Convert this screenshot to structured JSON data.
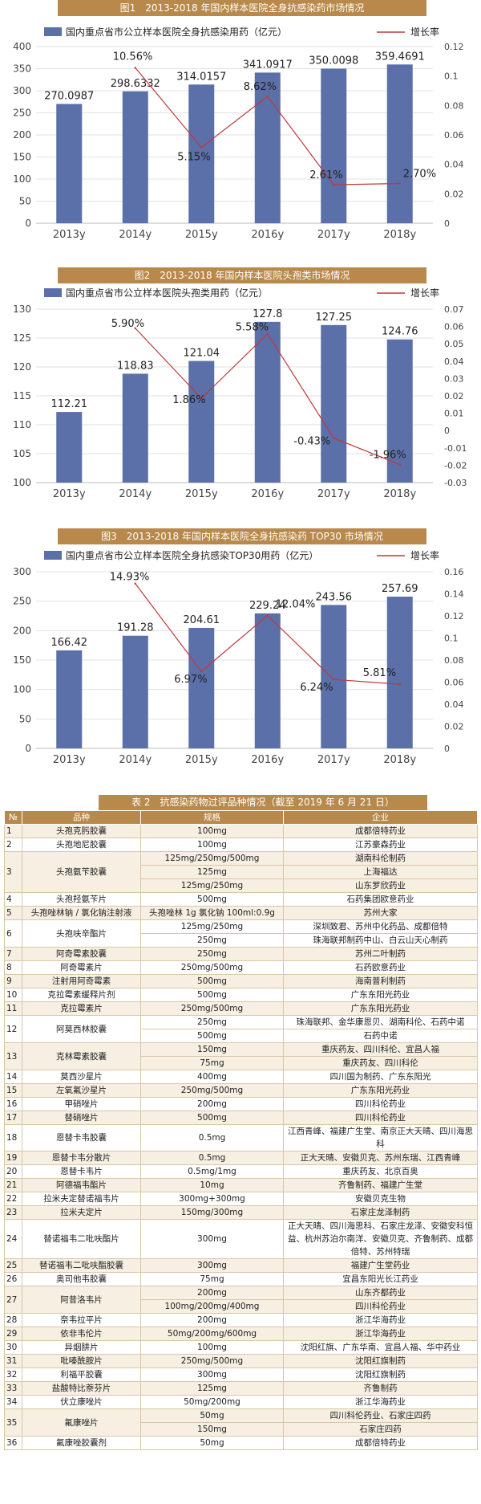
{
  "chart_data": [
    {
      "type": "bar",
      "title": "图1　2013-2018 年国内样本医院全身抗感染药市场情况",
      "bar_series": {
        "name": "国内重点省市公立样本医院全身抗感染用药（亿元）",
        "color": "#5b6fa8",
        "values": [
          270.0987,
          298.6332,
          314.0157,
          341.0917,
          350.0098,
          359.4691
        ]
      },
      "line_series": {
        "name": "增长率",
        "color": "#c0383c",
        "values": [
          null,
          0.1056,
          0.0515,
          0.0862,
          0.0261,
          0.027
        ]
      },
      "categories": [
        "2013y",
        "2014y",
        "2015y",
        "2016y",
        "2017y",
        "2018y"
      ],
      "bar_labels": [
        "270.0987",
        "298.6332",
        "314.0157",
        "341.0917",
        "350.0098",
        "359.4691"
      ],
      "line_labels": [
        "",
        "10.56%",
        "5.15%",
        "8.62%",
        "2.61%",
        "2.70%"
      ],
      "ylim_left": [
        0,
        400
      ],
      "yticks_left": [
        "0",
        "50",
        "100",
        "150",
        "200",
        "250",
        "300",
        "350",
        "400"
      ],
      "ylim_right": [
        0,
        0.12
      ],
      "yticks_right": [
        "0",
        "0.02",
        "0.04",
        "0.06",
        "0.08",
        "0.1",
        "0.12"
      ]
    },
    {
      "type": "bar",
      "title": "图2　2013-2018 年国内样本医院头孢类市场情况",
      "bar_series": {
        "name": "国内重点省市公立样本医院头孢类用药（亿元）",
        "color": "#5b6fa8",
        "values": [
          112.21,
          118.83,
          121.04,
          127.8,
          127.25,
          124.76
        ]
      },
      "line_series": {
        "name": "增长率",
        "color": "#c0383c",
        "values": [
          null,
          0.059,
          0.0186,
          0.0558,
          -0.0043,
          -0.0196
        ]
      },
      "categories": [
        "2013y",
        "2014y",
        "2015y",
        "2016y",
        "2017y",
        "2018y"
      ],
      "bar_labels": [
        "112.21",
        "118.83",
        "121.04",
        "127.8",
        "127.25",
        "124.76"
      ],
      "line_labels": [
        "",
        "5.90%",
        "1.86%",
        "5.58%",
        "-0.43%",
        "-1.96%"
      ],
      "ylim_left": [
        100,
        130
      ],
      "yticks_left": [
        "100",
        "105",
        "110",
        "115",
        "120",
        "125",
        "130"
      ],
      "ylim_right": [
        -0.03,
        0.07
      ],
      "yticks_right": [
        "-0.03",
        "-0.02",
        "-0.01",
        "0",
        "0.01",
        "0.02",
        "0.03",
        "0.04",
        "0.05",
        "0.06",
        "0.07"
      ]
    },
    {
      "type": "bar",
      "title": "图3　2013-2018 年国内样本医院全身抗感染药 TOP30 市场情况",
      "bar_series": {
        "name": "国内重点省市公立样本医院全身抗感染TOP30用药（亿元）",
        "color": "#5b6fa8",
        "values": [
          166.42,
          191.28,
          204.61,
          229.24,
          243.56,
          257.69
        ]
      },
      "line_series": {
        "name": "增长率",
        "color": "#c0383c",
        "values": [
          null,
          0.1493,
          0.0697,
          0.1204,
          0.0624,
          0.0581
        ]
      },
      "categories": [
        "2013y",
        "2014y",
        "2015y",
        "2016y",
        "2017y",
        "2018y"
      ],
      "bar_labels": [
        "166.42",
        "191.28",
        "204.61",
        "229.24",
        "243.56",
        "257.69"
      ],
      "line_labels": [
        "",
        "14.93%",
        "6.97%",
        "12.04%",
        "6.24%",
        "5.81%"
      ],
      "ylim_left": [
        0,
        300
      ],
      "yticks_left": [
        "0",
        "50",
        "100",
        "150",
        "200",
        "250",
        "300"
      ],
      "ylim_right": [
        0,
        0.16
      ],
      "yticks_right": [
        "0",
        "0.02",
        "0.04",
        "0.06",
        "0.08",
        "0.1",
        "0.12",
        "0.14",
        "0.16"
      ]
    }
  ],
  "table": {
    "title": "表 2　抗感染药物过评品种情况（截至 2019 年 6 月 21 日）",
    "headers": [
      "№",
      "品种",
      "规格",
      "企业"
    ],
    "rows": [
      [
        "1",
        "头孢克肟胶囊",
        "100mg",
        "成都倍特药业"
      ],
      [
        "2",
        "头孢地尼胶囊",
        "100mg",
        "江苏豪森药业"
      ],
      [
        "3",
        "头孢氨苄胶囊",
        "125mg/250mg/500mg",
        "湖南科伦制药"
      ],
      [
        "",
        "",
        "125mg",
        "上海福达"
      ],
      [
        "",
        "",
        "125mg/250mg",
        "山东罗欣药业"
      ],
      [
        "4",
        "头孢羟氨苄片",
        "500mg",
        "石药集团欧意药业"
      ],
      [
        "5",
        "头孢唑林钠 / 氯化钠注射液",
        "头孢唑林 1g 氯化钠 100ml:0.9g",
        "苏州大家"
      ],
      [
        "6",
        "头孢呋辛酯片",
        "125mg/250mg",
        "深圳致君、苏州中化药品、成都倍特"
      ],
      [
        "",
        "",
        "250mg",
        "珠海联邦制药中山、白云山天心制药"
      ],
      [
        "7",
        "阿奇霉素胶囊",
        "250mg",
        "苏州二叶制药"
      ],
      [
        "8",
        "阿奇霉素片",
        "250mg/500mg",
        "石药欧意药业"
      ],
      [
        "9",
        "注射用阿奇霉素",
        "500mg",
        "海南普利制药"
      ],
      [
        "10",
        "克拉霉素缓释片剂",
        "500mg",
        "广东东阳光药业"
      ],
      [
        "11",
        "克拉霉素片",
        "250mg/500mg",
        "广东东阳光药业"
      ],
      [
        "12",
        "阿莫西林胶囊",
        "250mg",
        "珠海联邦、金华康恩贝、湖南科伦、石药中诺"
      ],
      [
        "",
        "",
        "500mg",
        "石药中诺"
      ],
      [
        "13",
        "克林霉素胶囊",
        "150mg",
        "重庆药友、四川科伦、宜昌人福"
      ],
      [
        "",
        "",
        "75mg",
        "重庆药友、四川科伦"
      ],
      [
        "14",
        "莫西沙星片",
        "400mg",
        "四川国为制药、广东东阳光"
      ],
      [
        "15",
        "左氧氟沙星片",
        "250mg/500mg",
        "广东东阳光药业"
      ],
      [
        "16",
        "甲硝唑片",
        "200mg",
        "四川科伦药业"
      ],
      [
        "17",
        "替硝唑片",
        "500mg",
        "四川科伦药业"
      ],
      [
        "18",
        "恩替卡韦胶囊",
        "0.5mg",
        "江西青峰、福建广生堂、南京正大天晴、四川海思科"
      ],
      [
        "19",
        "恩替卡韦分散片",
        "0.5mg",
        "正大天晴、安徽贝克、苏州东瑞、江西青峰"
      ],
      [
        "20",
        "恩替卡韦片",
        "0.5mg/1mg",
        "重庆药友、北京百奥"
      ],
      [
        "21",
        "阿德福韦酯片",
        "10mg",
        "齐鲁制药、福建广生堂"
      ],
      [
        "22",
        "拉米夫定替诺福韦片",
        "300mg+300mg",
        "安徽贝克生物"
      ],
      [
        "23",
        "拉米夫定片",
        "150mg/300mg",
        "石家庄龙泽制药"
      ],
      [
        "24",
        "替诺福韦二吡呋酯片",
        "300mg",
        "正大天晴、四川海思科、石家庄龙泽、安徽安科恒益、杭州苏泊尔南洋、安徽贝克、齐鲁制药、成都倍特、苏州特瑞"
      ],
      [
        "25",
        "替诺福韦二吡呋酯胶囊",
        "300mg",
        "福建广生堂药业"
      ],
      [
        "26",
        "奥司他韦胶囊",
        "75mg",
        "宜昌东阳光长江药业"
      ],
      [
        "27",
        "阿昔洛韦片",
        "200mg",
        "山东齐都药业"
      ],
      [
        "",
        "",
        "100mg/200mg/400mg",
        "四川科伦药业"
      ],
      [
        "28",
        "奈韦拉平片",
        "200mg",
        "浙江华海药业"
      ],
      [
        "29",
        "依非韦伦片",
        "50mg/200mg/600mg",
        "浙江华海药业"
      ],
      [
        "30",
        "异烟肼片",
        "100mg",
        "沈阳红旗、广东华南、宜昌人福、华中药业"
      ],
      [
        "31",
        "吡嗪酰胺片",
        "250mg/500mg",
        "沈阳红旗制药"
      ],
      [
        "32",
        "利福平胶囊",
        "300mg",
        "沈阳红旗制药"
      ],
      [
        "33",
        "盐酸特比萘芬片",
        "125mg",
        "齐鲁制药"
      ],
      [
        "34",
        "伏立康唑片",
        "50mg/200mg",
        "浙江华海药业"
      ],
      [
        "35",
        "氟康唑片",
        "50mg",
        "四川科伦药业、石家庄四药"
      ],
      [
        "",
        "",
        "150mg",
        "石家庄四药"
      ],
      [
        "36",
        "氟康唑胶囊剂",
        "50mg",
        "成都倍特药业"
      ]
    ]
  }
}
